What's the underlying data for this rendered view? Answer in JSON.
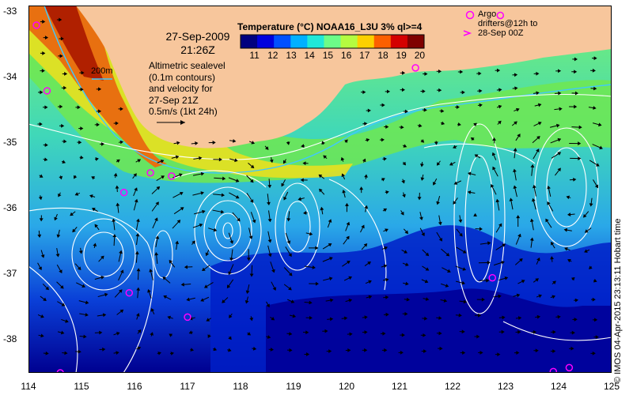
{
  "map": {
    "title": "Temperature (°C) NOAA16_L3U 3% ql>=4",
    "date_line1": "27-Sep-2009",
    "date_line2": "21:26Z",
    "info_lines": [
      "Altimetric sealevel",
      "(0.1m contours)",
      "and velocity for",
      "27-Sep 21Z",
      "0.5m/s (1kt 24h)"
    ],
    "isobath_label": "200m",
    "argo_line1": "Argo",
    "argo_line2": "drifters@12h to",
    "argo_line3": "28-Sep 00Z",
    "credit": "© IMOS 04-Apr-2015 23:13:11 Hobart time",
    "x_ticks": [
      "114",
      "115",
      "116",
      "117",
      "118",
      "119",
      "120",
      "121",
      "122",
      "123",
      "124",
      "125"
    ],
    "y_ticks": [
      "-33",
      "-34",
      "-35",
      "-36",
      "-37",
      "-38"
    ],
    "colorbar_ticks": [
      "11",
      "12",
      "13",
      "14",
      "15",
      "16",
      "17",
      "18",
      "19",
      "20"
    ],
    "colorbar_colors": [
      "#00007f",
      "#0000dd",
      "#0050ff",
      "#00b0ff",
      "#20e8d8",
      "#6cfc88",
      "#b4fc40",
      "#fcd000",
      "#fc6000",
      "#d40000",
      "#7f0000"
    ],
    "colors": {
      "land": "#f7c69c",
      "argo": "#ff00ff",
      "contour": "#ffffff",
      "isobath": "#40c8ff"
    },
    "argo_floats": [
      {
        "lon": 114.15,
        "lat": -33.2
      },
      {
        "lon": 114.35,
        "lat": -34.2
      },
      {
        "lon": 115.8,
        "lat": -35.75
      },
      {
        "lon": 116.3,
        "lat": -35.45
      },
      {
        "lon": 116.7,
        "lat": -35.5
      },
      {
        "lon": 115.9,
        "lat": -37.28
      },
      {
        "lon": 117.0,
        "lat": -37.65
      },
      {
        "lon": 122.75,
        "lat": -37.05
      },
      {
        "lon": 124.2,
        "lat": -38.42
      },
      {
        "lon": 123.9,
        "lat": -38.48
      },
      {
        "lon": 121.3,
        "lat": -33.85
      },
      {
        "lon": 114.6,
        "lat": -38.5
      },
      {
        "lon": 122.9,
        "lat": -33.05
      }
    ]
  }
}
